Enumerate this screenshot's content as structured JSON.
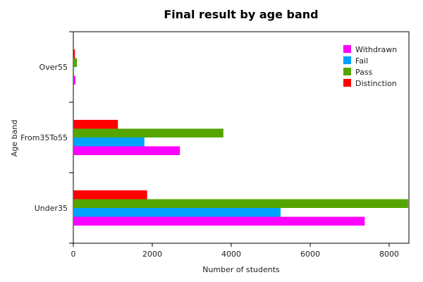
{
  "chart_data": {
    "type": "bar",
    "orientation": "horizontal",
    "title": "Final result by age band",
    "xlabel": "Number of students",
    "ylabel": "Age band",
    "categories": [
      "Under35",
      "From35To55",
      "Over55"
    ],
    "series": [
      {
        "name": "Withdrawn",
        "color": "#ff00ff",
        "values": [
          7380,
          2700,
          50
        ]
      },
      {
        "name": "Fail",
        "color": "#00a2ff",
        "values": [
          5250,
          1800,
          20
        ]
      },
      {
        "name": "Pass",
        "color": "#55a500",
        "values": [
          8480,
          3800,
          90
        ]
      },
      {
        "name": "Distinction",
        "color": "#ff0000",
        "values": [
          1870,
          1130,
          40
        ]
      }
    ],
    "xlim": [
      0,
      8500
    ],
    "xticks": [
      0,
      2000,
      4000,
      6000,
      8000
    ],
    "grid": false,
    "legend_position": "top-right"
  }
}
